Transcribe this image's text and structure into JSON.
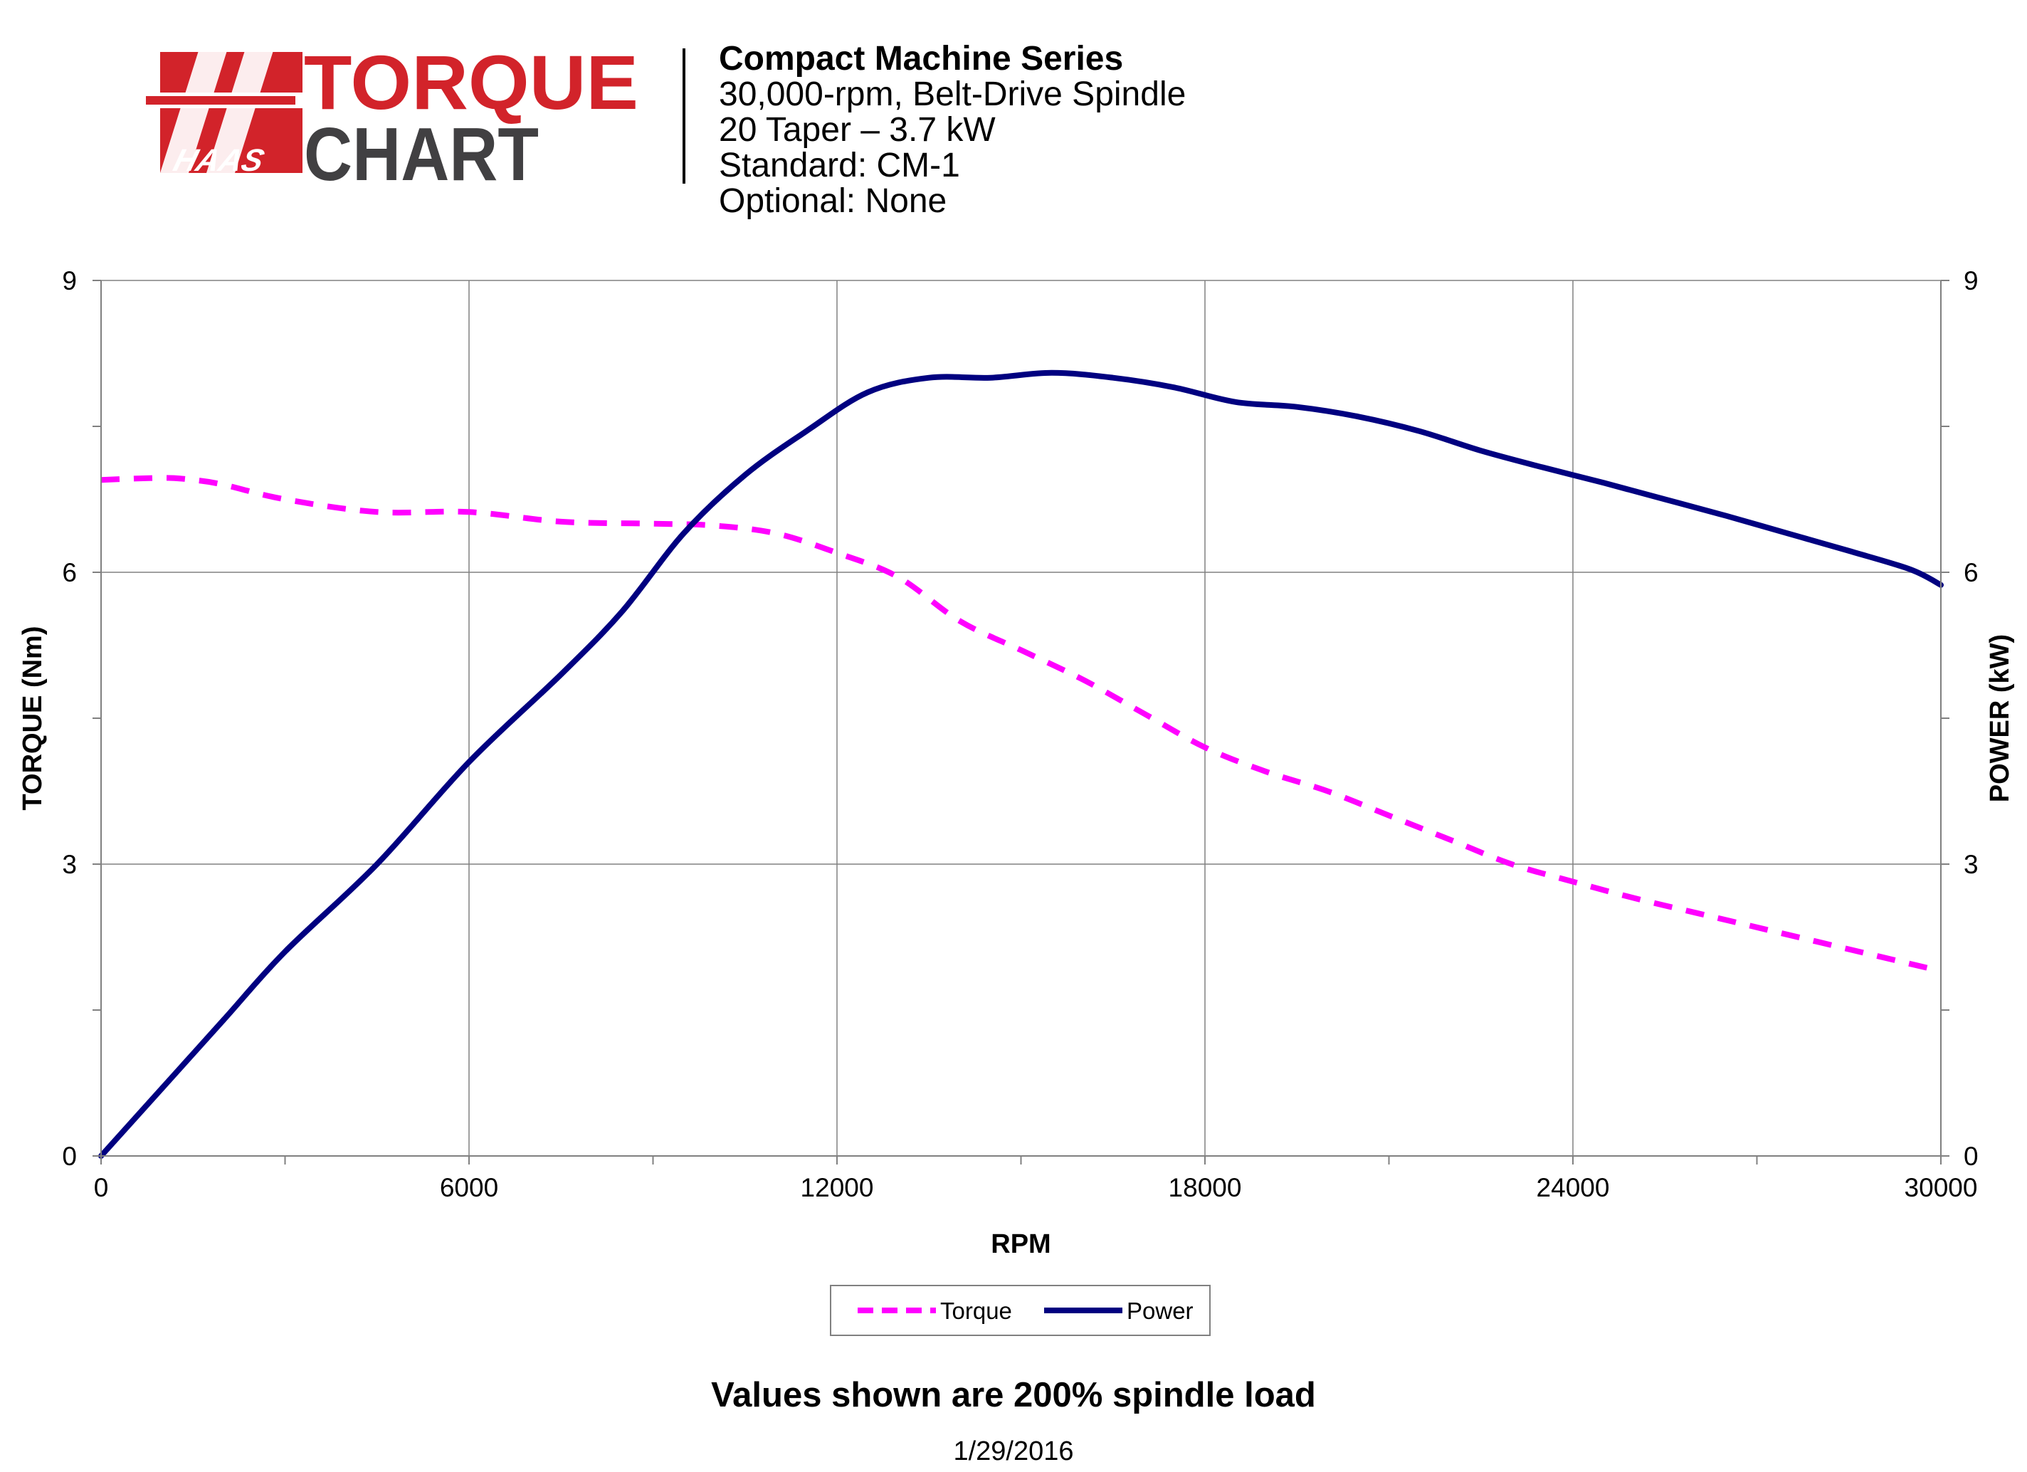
{
  "logo": {
    "brand": "HAAS",
    "word1": "TORQUE",
    "word2": "CHART",
    "colors": {
      "red": "#d2232a",
      "dark": "#414042"
    }
  },
  "header": {
    "lines": [
      "Compact Machine Series",
      "30,000-rpm, Belt-Drive Spindle",
      "20 Taper – 3.7 kW",
      "Standard: CM-1",
      "Optional: None"
    ]
  },
  "footer": {
    "note": "Values shown are 200% spindle load",
    "date": "1/29/2016"
  },
  "chart_data": {
    "type": "line",
    "xlabel": "RPM",
    "ylabel": "TORQUE (Nm)",
    "y2label": "POWER (kW)",
    "xlim": [
      0,
      30000
    ],
    "ylim": [
      0,
      9
    ],
    "y2lim": [
      0,
      9
    ],
    "xticks": [
      0,
      6000,
      12000,
      18000,
      24000,
      30000
    ],
    "yticks": [
      0,
      3,
      6,
      9
    ],
    "y2ticks": [
      0,
      3,
      6,
      9
    ],
    "grid": true,
    "legend": "bottom-center",
    "series": [
      {
        "name": "Torque",
        "axis": "left",
        "style": "dashed",
        "color": "#ff00ff",
        "x": [
          0,
          1000,
          1500,
          2000,
          3000,
          4500,
          6000,
          7500,
          9000,
          10000,
          11000,
          12000,
          13000,
          14000,
          15000,
          16000,
          17000,
          18000,
          19000,
          20000,
          21000,
          22000,
          23000,
          24000,
          25000,
          26000,
          27000,
          28000,
          29000,
          30000
        ],
        "y": [
          6.95,
          6.97,
          6.95,
          6.9,
          6.75,
          6.62,
          6.62,
          6.52,
          6.5,
          6.48,
          6.4,
          6.2,
          5.95,
          5.5,
          5.2,
          4.9,
          4.55,
          4.2,
          3.95,
          3.75,
          3.5,
          3.25,
          3.0,
          2.82,
          2.65,
          2.5,
          2.35,
          2.2,
          2.05,
          1.9
        ]
      },
      {
        "name": "Power",
        "axis": "right",
        "style": "solid",
        "color": "#000080",
        "x": [
          0,
          1000,
          2000,
          3000,
          4500,
          6000,
          7500,
          8500,
          9500,
          10500,
          11500,
          12500,
          13500,
          14500,
          15500,
          16500,
          17500,
          18500,
          19500,
          20500,
          21500,
          22500,
          23500,
          24500,
          25500,
          26500,
          27500,
          28500,
          29500,
          30000
        ],
        "y": [
          0,
          0.7,
          1.4,
          2.1,
          3.0,
          4.05,
          4.95,
          5.6,
          6.4,
          7.0,
          7.45,
          7.85,
          8.0,
          8.0,
          8.05,
          8.0,
          7.9,
          7.75,
          7.7,
          7.6,
          7.45,
          7.25,
          7.08,
          6.92,
          6.75,
          6.58,
          6.4,
          6.22,
          6.03,
          5.87
        ]
      }
    ]
  }
}
